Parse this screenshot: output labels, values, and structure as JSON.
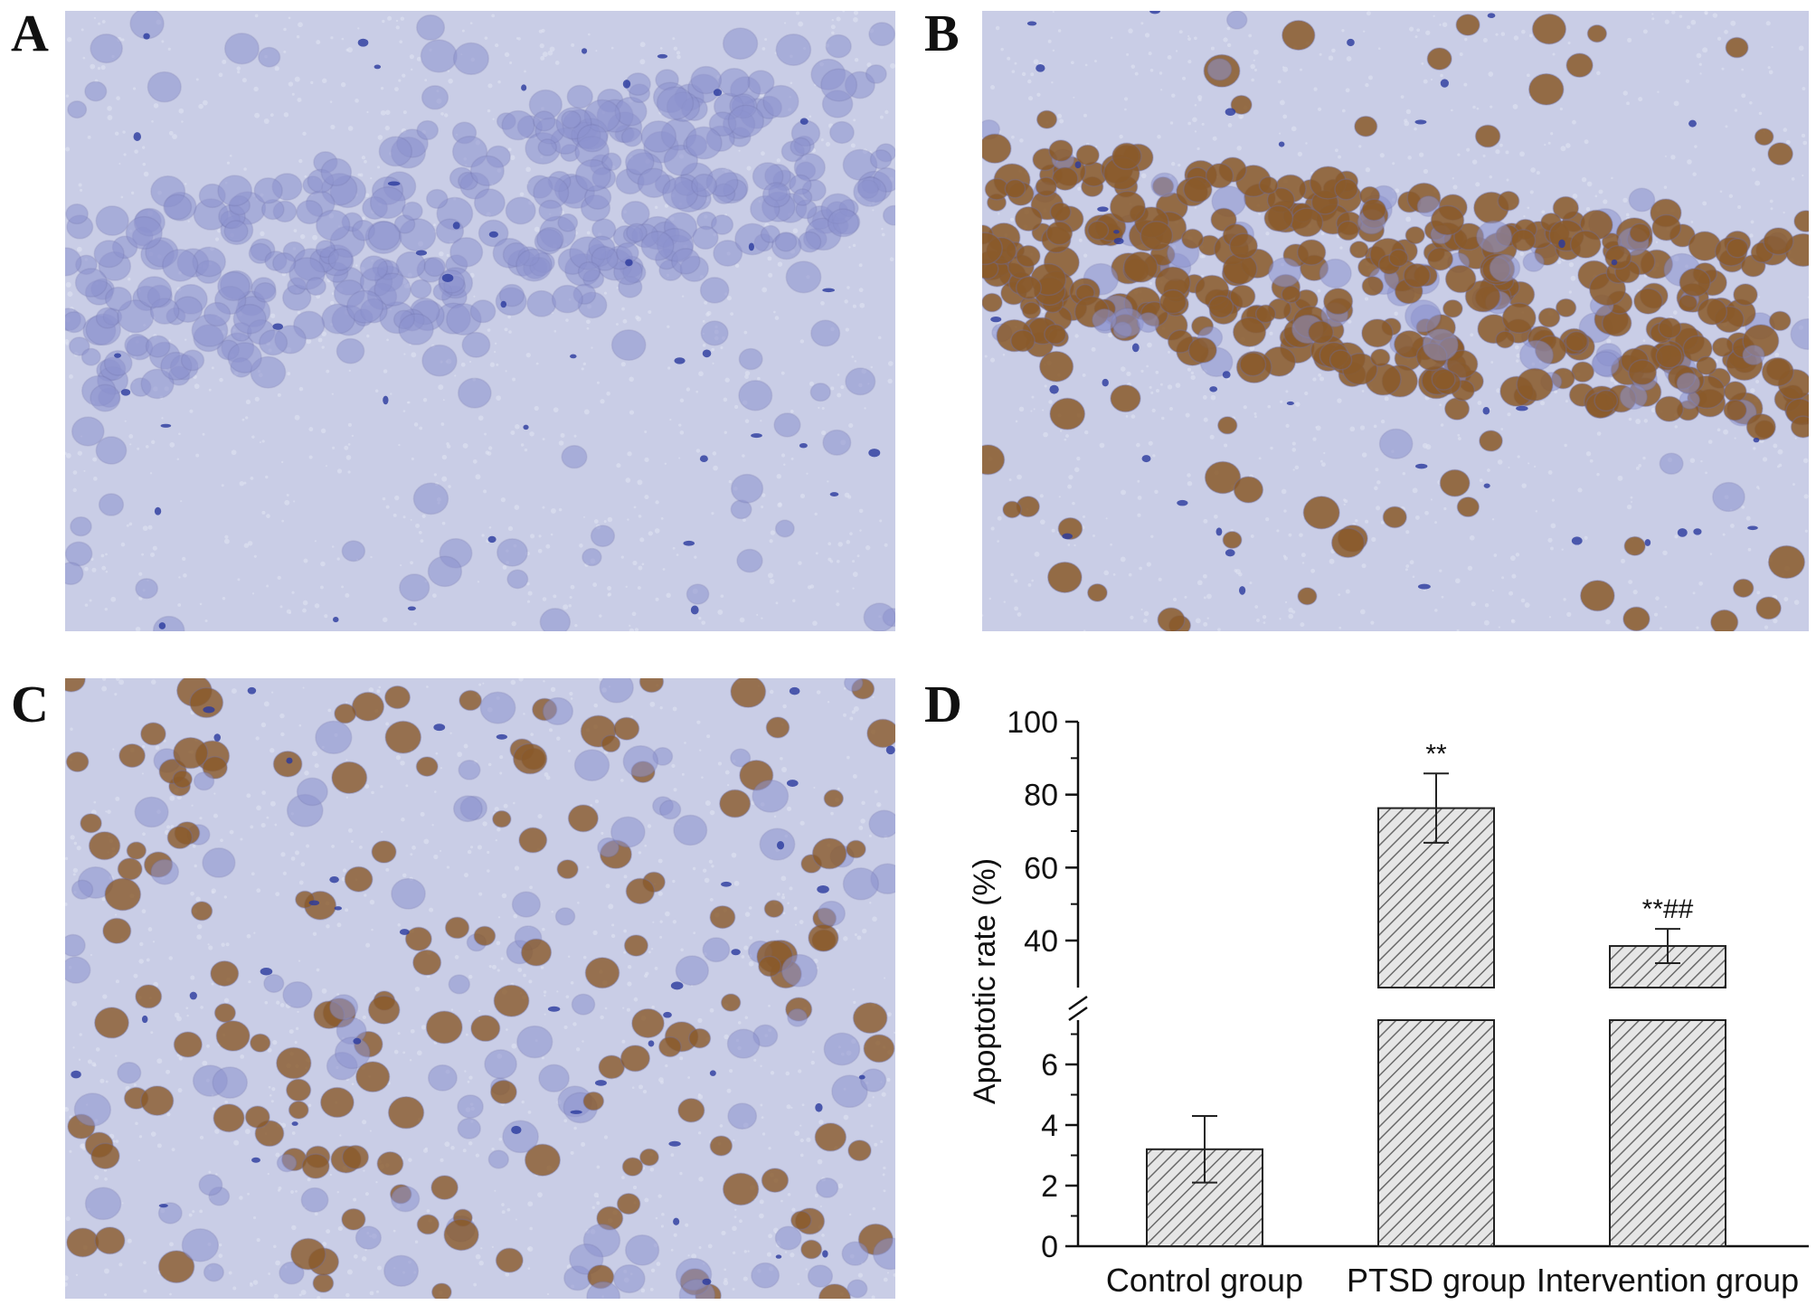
{
  "panels": {
    "a": {
      "letter": "A",
      "stain": "blue"
    },
    "b": {
      "letter": "B",
      "stain": "brown-dense"
    },
    "c": {
      "letter": "C",
      "stain": "brown-scattered"
    },
    "d": {
      "letter": "D"
    }
  },
  "colors": {
    "background_tissue": "#c9cde6",
    "nucleus_blue": "#8d93cf",
    "nucleus_brown": "#8a5a2a",
    "bar_fill": "#e6e6e6",
    "bar_hatch": "#6a6a6a",
    "axis": "#111111"
  },
  "chart_data": {
    "type": "bar",
    "ylabel": "Apoptotic rate (%)",
    "categories": [
      "Control group",
      "PTSD group",
      "Intervention group"
    ],
    "values": [
      3.2,
      76.3,
      38.5
    ],
    "errors": [
      1.1,
      9.5,
      4.7
    ],
    "significance": [
      "",
      "**",
      "**##"
    ],
    "axis_break": {
      "lower": [
        0,
        8
      ],
      "upper": [
        30,
        100
      ]
    },
    "yticks_lower": [
      0,
      2,
      4,
      6
    ],
    "yticks_upper": [
      40,
      60,
      80,
      100
    ],
    "hatched": true
  }
}
